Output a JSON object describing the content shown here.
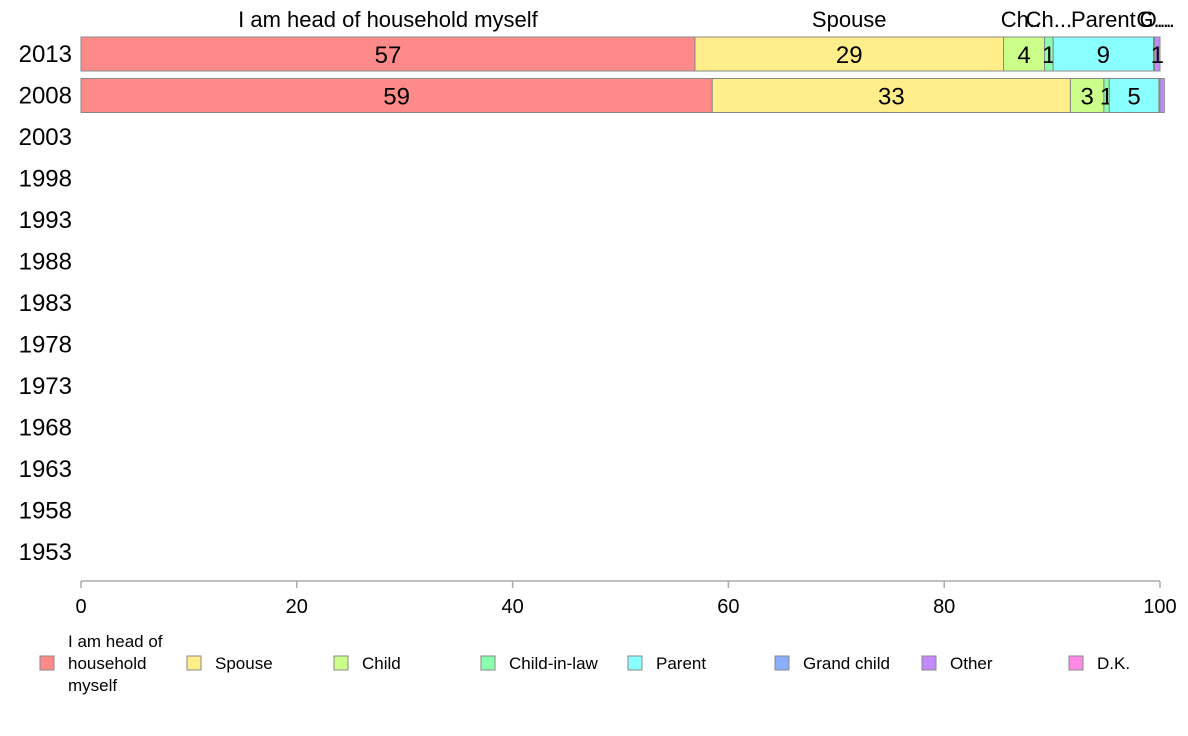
{
  "chart_data": {
    "type": "bar",
    "orientation": "horizontal",
    "stacked": true,
    "title": "",
    "xlabel": "",
    "ylabel": "",
    "xlim": [
      0,
      100
    ],
    "x_ticks": [
      "0",
      "20",
      "40",
      "60",
      "80",
      "100"
    ],
    "categories": [
      "2013",
      "2008",
      "2003",
      "1998",
      "1993",
      "1988",
      "1983",
      "1978",
      "1973",
      "1968",
      "1963",
      "1958",
      "1953"
    ],
    "series": [
      {
        "name": "I am head of household myself",
        "legend_lines": [
          "I am head of",
          "household",
          "myself"
        ],
        "top_label": "I am head of household myself",
        "color": "#ff8a8a",
        "values": [
          56.9,
          58.5,
          null,
          null,
          null,
          null,
          null,
          null,
          null,
          null,
          null,
          null,
          null
        ],
        "labels": [
          "57",
          "59",
          "",
          "",
          "",
          "",
          "",
          "",
          "",
          "",
          "",
          "",
          ""
        ]
      },
      {
        "name": "Spouse",
        "legend_lines": [
          "Spouse"
        ],
        "top_label": "Spouse",
        "color": "#ffee8a",
        "values": [
          28.6,
          33.2,
          null,
          null,
          null,
          null,
          null,
          null,
          null,
          null,
          null,
          null,
          null
        ],
        "labels": [
          "29",
          "33",
          "",
          "",
          "",
          "",
          "",
          "",
          "",
          "",
          "",
          "",
          ""
        ]
      },
      {
        "name": "Child",
        "legend_lines": [
          "Child"
        ],
        "top_label": "Ch...",
        "color": "#ccff8a",
        "values": [
          3.8,
          3.1,
          null,
          null,
          null,
          null,
          null,
          null,
          null,
          null,
          null,
          null,
          null
        ],
        "labels": [
          "4",
          "3",
          "",
          "",
          "",
          "",
          "",
          "",
          "",
          "",
          "",
          "",
          ""
        ]
      },
      {
        "name": "Child-in-law",
        "legend_lines": [
          "Child-in-law"
        ],
        "top_label": "Ch...",
        "color": "#8affad",
        "values": [
          0.8,
          0.5,
          null,
          null,
          null,
          null,
          null,
          null,
          null,
          null,
          null,
          null,
          null
        ],
        "labels": [
          "1",
          "1",
          "",
          "",
          "",
          "",
          "",
          "",
          "",
          "",
          "",
          "",
          ""
        ]
      },
      {
        "name": "Parent",
        "legend_lines": [
          "Parent"
        ],
        "top_label": "Parent",
        "color": "#8affff",
        "values": [
          9.3,
          4.6,
          null,
          null,
          null,
          null,
          null,
          null,
          null,
          null,
          null,
          null,
          null
        ],
        "labels": [
          "9",
          "5",
          "",
          "",
          "",
          "",
          "",
          "",
          "",
          "",
          "",
          "",
          ""
        ]
      },
      {
        "name": "Grand child",
        "legend_lines": [
          "Grand child"
        ],
        "top_label": "G...",
        "color": "#8aadff",
        "values": [
          0.1,
          0.1,
          null,
          null,
          null,
          null,
          null,
          null,
          null,
          null,
          null,
          null,
          null
        ],
        "labels": [
          "",
          "",
          "",
          "",
          "",
          "",
          "",
          "",
          "",
          "",
          "",
          "",
          ""
        ]
      },
      {
        "name": "Other",
        "legend_lines": [
          "Other"
        ],
        "top_label": "O...",
        "color": "#c38aff",
        "values": [
          0.5,
          0.4,
          null,
          null,
          null,
          null,
          null,
          null,
          null,
          null,
          null,
          null,
          null
        ],
        "labels": [
          "1",
          "",
          "",
          "",
          "",
          "",
          "",
          "",
          "",
          "",
          "",
          "",
          ""
        ]
      },
      {
        "name": "D.K.",
        "legend_lines": [
          "D.K."
        ],
        "top_label": "",
        "color": "#ff8ae6",
        "values": [
          0.0,
          0.0,
          null,
          null,
          null,
          null,
          null,
          null,
          null,
          null,
          null,
          null,
          null
        ],
        "labels": [
          "",
          "",
          "",
          "",
          "",
          "",
          "",
          "",
          "",
          "",
          "",
          "",
          ""
        ]
      }
    ],
    "legend_position": "bottom",
    "grid": false
  }
}
